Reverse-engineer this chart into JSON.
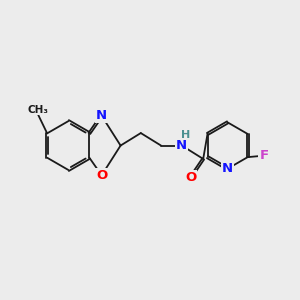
{
  "background_color": "#ececec",
  "bond_color": "#1a1a1a",
  "atom_colors": {
    "N": "#1414ff",
    "O": "#ff0000",
    "F": "#cc44cc",
    "H": "#4a9090",
    "C": "#1a1a1a"
  },
  "font_size_atom": 9.5,
  "font_size_small": 8.0,
  "lw": 1.3,
  "dbo": 0.07
}
